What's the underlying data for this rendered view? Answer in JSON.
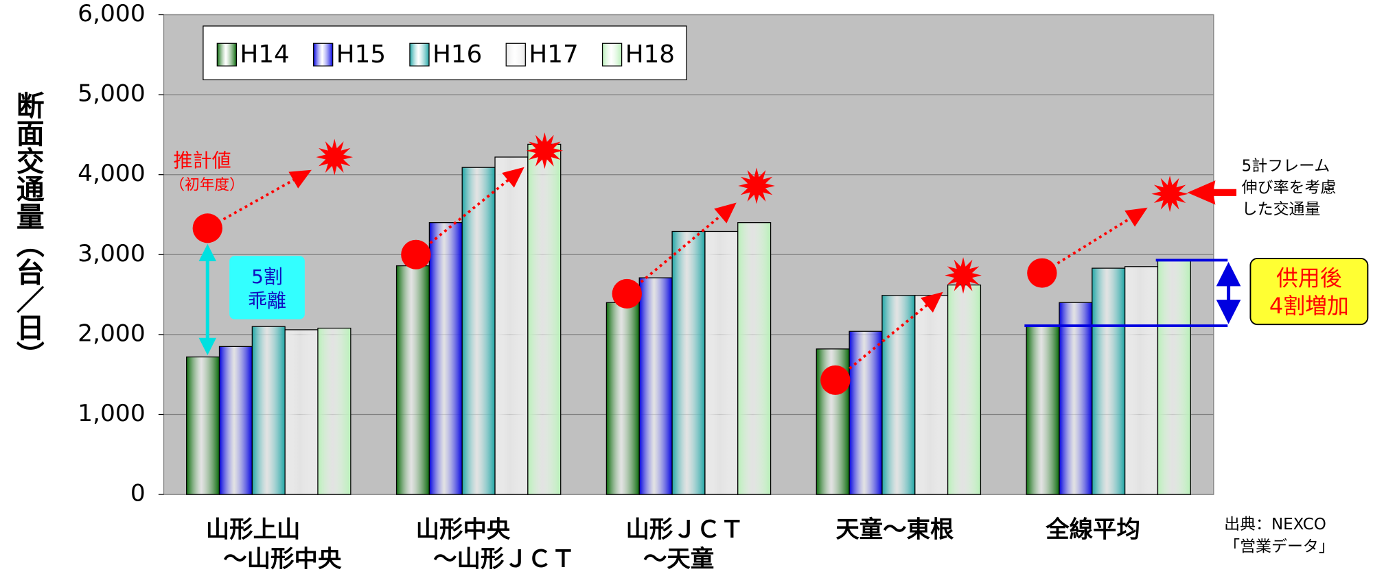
{
  "chart_data": {
    "type": "bar",
    "y_label": "断面交通量（台／日）",
    "categories": [
      [
        "山形上山",
        "～山形中央"
      ],
      [
        "山形中央",
        "～山形ＪＣＴ"
      ],
      [
        "山形ＪＣＴ",
        "～天童"
      ],
      [
        "天童～東根"
      ],
      [
        "全線平均"
      ]
    ],
    "series": [
      {
        "name": "H14",
        "color": "#0a6a0a",
        "values": [
          1720,
          2860,
          2400,
          1820,
          2110
        ]
      },
      {
        "name": "H15",
        "color": "#0000e0",
        "values": [
          1850,
          3400,
          2710,
          2040,
          2400
        ]
      },
      {
        "name": "H16",
        "color": "#1fa5a5",
        "values": [
          2100,
          4090,
          3290,
          2490,
          2830
        ]
      },
      {
        "name": "H17",
        "color": "#e8e8e8",
        "values": [
          2060,
          4220,
          3290,
          2490,
          2850
        ]
      },
      {
        "name": "H18",
        "color": "#b8f0b8",
        "values": [
          2080,
          4380,
          3400,
          2620,
          2930
        ]
      }
    ],
    "estimate": {
      "label": "推計値",
      "sublabel": "（初年度）",
      "color": "#ff0000",
      "values": [
        3330,
        3000,
        2510,
        1430,
        2770
      ]
    },
    "projection": {
      "label": [
        "5計フレーム",
        "伸び率を考慮",
        "した交通量"
      ],
      "color": "#ff0000",
      "values": [
        4220,
        4300,
        3860,
        2740,
        3760
      ]
    },
    "gap_note": [
      "5割",
      "乖離"
    ],
    "increase_note": [
      "供用後",
      "4割増加"
    ],
    "source": [
      "出典：NEXCO",
      "「営業データ」"
    ],
    "ylim": [
      0,
      6000
    ],
    "yticks": [
      0,
      {
        "value": 1000,
        "label": "1,000"
      },
      {
        "value": 2000,
        "label": "2,000"
      },
      {
        "value": 3000,
        "label": "3,000"
      },
      {
        "value": 4000,
        "label": "4,000"
      },
      {
        "value": 5000,
        "label": "5,000"
      },
      {
        "value": 6000,
        "label": "6,000"
      }
    ],
    "grid": true,
    "legend": "top-left"
  }
}
